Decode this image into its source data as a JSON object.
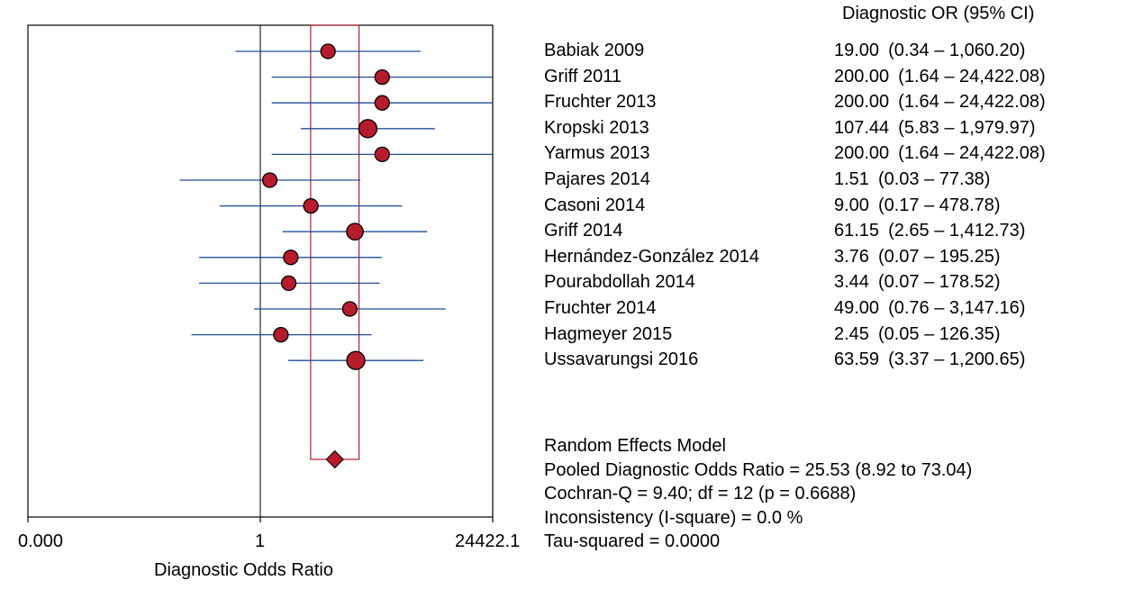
{
  "chart_data": {
    "type": "forest",
    "column_header": "Diagnostic OR (95% CI)",
    "xlabel": "Diagnostic Odds Ratio",
    "scale": "log",
    "tick_labels": [
      "0.000",
      "1",
      "24422.1"
    ],
    "ci_color": "#1f4e96",
    "point_color": "#b71c2c",
    "pooled_box_color": "#b71c2c",
    "studies": [
      {
        "name": "Babiak 2009",
        "or": 19.0,
        "lo": 0.34,
        "hi": 1060.2,
        "or_text": "19.00",
        "ci_text": "(0.34 – 1,060.20)",
        "weight": 1
      },
      {
        "name": "Griff 2011",
        "or": 200.0,
        "lo": 1.64,
        "hi": 24422.08,
        "or_text": "200.00",
        "ci_text": "(1.64 – 24,422.08)",
        "weight": 1
      },
      {
        "name": "Fruchter 2013",
        "or": 200.0,
        "lo": 1.64,
        "hi": 24422.08,
        "or_text": "200.00",
        "ci_text": "(1.64 – 24,422.08)",
        "weight": 1
      },
      {
        "name": "Kropski 2013",
        "or": 107.44,
        "lo": 5.83,
        "hi": 1979.97,
        "or_text": "107.44",
        "ci_text": "(5.83 – 1,979.97)",
        "weight": 1.25
      },
      {
        "name": "Yarmus 2013",
        "or": 200.0,
        "lo": 1.64,
        "hi": 24422.08,
        "or_text": "200.00",
        "ci_text": "(1.64 – 24,422.08)",
        "weight": 1
      },
      {
        "name": "Pajares 2014",
        "or": 1.51,
        "lo": 0.03,
        "hi": 77.38,
        "or_text": "1.51",
        "ci_text": "(0.03 – 77.38)",
        "weight": 1
      },
      {
        "name": "Casoni 2014",
        "or": 9.0,
        "lo": 0.17,
        "hi": 478.78,
        "or_text": "9.00",
        "ci_text": "(0.17 – 478.78)",
        "weight": 1
      },
      {
        "name": "Griff 2014",
        "or": 61.15,
        "lo": 2.65,
        "hi": 1412.73,
        "or_text": "61.15",
        "ci_text": "(2.65 – 1,412.73)",
        "weight": 1.15
      },
      {
        "name": "Hernández-González 2014",
        "or": 3.76,
        "lo": 0.07,
        "hi": 195.25,
        "or_text": "3.76",
        "ci_text": "(0.07 – 195.25)",
        "weight": 1
      },
      {
        "name": "Pourabdollah 2014",
        "or": 3.44,
        "lo": 0.07,
        "hi": 178.52,
        "or_text": "3.44",
        "ci_text": "(0.07 – 178.52)",
        "weight": 1
      },
      {
        "name": "Fruchter 2014",
        "or": 49.0,
        "lo": 0.76,
        "hi": 3147.16,
        "or_text": "49.00",
        "ci_text": "(0.76 – 3,147.16)",
        "weight": 1
      },
      {
        "name": "Hagmeyer 2015",
        "or": 2.45,
        "lo": 0.05,
        "hi": 126.35,
        "or_text": "2.45",
        "ci_text": "(0.05 – 126.35)",
        "weight": 1
      },
      {
        "name": "Ussavarungsi 2016",
        "or": 63.59,
        "lo": 3.37,
        "hi": 1200.65,
        "or_text": "63.59",
        "ci_text": "(3.37 – 1,200.65)",
        "weight": 1.25
      }
    ],
    "pooled": {
      "or": 25.53,
      "lo": 8.92,
      "hi": 73.04
    },
    "summary_lines": [
      "Random Effects Model",
      "Pooled Diagnostic Odds Ratio = 25.53 (8.92 to 73.04)",
      "Cochran-Q = 9.40; df =  12 (p = 0.6688)",
      "Inconsistency (I-square) = 0.0 %",
      "Tau-squared = 0.0000"
    ]
  }
}
